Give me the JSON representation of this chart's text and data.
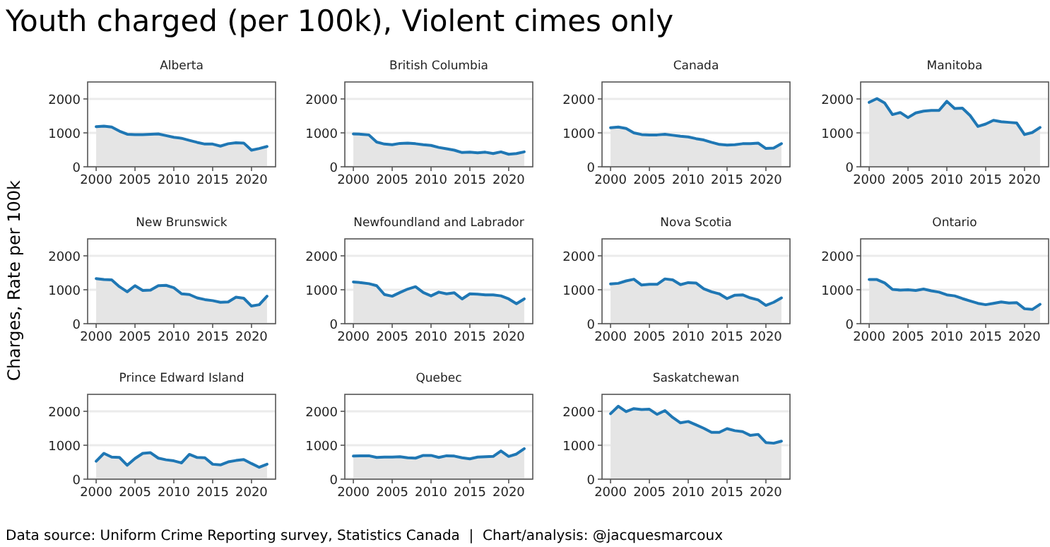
{
  "chart_data": [
    {
      "type": "other",
      "title": "Youth charged (per 100k), Violent cimes only",
      "ylabel": "Charges, Rate per 100k",
      "annotations": [
        "Data source: Uniform Crime Reporting survey, Statistics Canada  |  Chart/analysis: @jacquesmarcoux"
      ]
    },
    {
      "type": "area",
      "title": "Alberta",
      "x": [
        2000,
        2001,
        2002,
        2003,
        2004,
        2005,
        2006,
        2007,
        2008,
        2009,
        2010,
        2011,
        2012,
        2013,
        2014,
        2015,
        2016,
        2017,
        2018,
        2019,
        2020,
        2021,
        2022
      ],
      "values": [
        1180,
        1200,
        1170,
        1050,
        960,
        950,
        950,
        960,
        970,
        920,
        870,
        840,
        780,
        720,
        670,
        670,
        610,
        680,
        710,
        700,
        490,
        540,
        600
      ],
      "color": "#1f77b4",
      "xlim": [
        1998.9,
        2023.1
      ],
      "xticks": [
        2000,
        2005,
        2010,
        2015,
        2020
      ],
      "ylim": [
        0,
        2500
      ],
      "yticks": [
        0,
        1000,
        2000
      ],
      "grid": "y"
    },
    {
      "type": "area",
      "title": "British Columbia",
      "x": [
        2000,
        2001,
        2002,
        2003,
        2004,
        2005,
        2006,
        2007,
        2008,
        2009,
        2010,
        2011,
        2012,
        2013,
        2014,
        2015,
        2016,
        2017,
        2018,
        2019,
        2020,
        2021,
        2022
      ],
      "values": [
        970,
        960,
        940,
        730,
        670,
        650,
        690,
        700,
        680,
        650,
        630,
        570,
        530,
        490,
        420,
        430,
        410,
        430,
        390,
        440,
        370,
        390,
        440
      ],
      "color": "#1f77b4",
      "xlim": [
        1998.9,
        2023.1
      ],
      "xticks": [
        2000,
        2005,
        2010,
        2015,
        2020
      ],
      "ylim": [
        0,
        2500
      ],
      "yticks": [
        0,
        1000,
        2000
      ],
      "grid": "y"
    },
    {
      "type": "area",
      "title": "Canada",
      "x": [
        2000,
        2001,
        2002,
        2003,
        2004,
        2005,
        2006,
        2007,
        2008,
        2009,
        2010,
        2011,
        2012,
        2013,
        2014,
        2015,
        2016,
        2017,
        2018,
        2019,
        2020,
        2021,
        2022
      ],
      "values": [
        1150,
        1170,
        1130,
        1000,
        950,
        940,
        940,
        960,
        930,
        900,
        880,
        830,
        790,
        720,
        660,
        640,
        650,
        680,
        680,
        700,
        540,
        550,
        680
      ],
      "color": "#1f77b4",
      "xlim": [
        1998.9,
        2023.1
      ],
      "xticks": [
        2000,
        2005,
        2010,
        2015,
        2020
      ],
      "ylim": [
        0,
        2500
      ],
      "yticks": [
        0,
        1000,
        2000
      ],
      "grid": "y"
    },
    {
      "type": "area",
      "title": "Manitoba",
      "x": [
        2000,
        2001,
        2002,
        2003,
        2004,
        2005,
        2006,
        2007,
        2008,
        2009,
        2010,
        2011,
        2012,
        2013,
        2014,
        2015,
        2016,
        2017,
        2018,
        2019,
        2020,
        2021,
        2022
      ],
      "values": [
        1900,
        2010,
        1880,
        1540,
        1600,
        1450,
        1590,
        1640,
        1660,
        1660,
        1930,
        1720,
        1730,
        1510,
        1190,
        1260,
        1370,
        1330,
        1310,
        1290,
        950,
        1010,
        1160
      ],
      "color": "#1f77b4",
      "xlim": [
        1998.9,
        2023.1
      ],
      "xticks": [
        2000,
        2005,
        2010,
        2015,
        2020
      ],
      "ylim": [
        0,
        2500
      ],
      "yticks": [
        0,
        1000,
        2000
      ],
      "grid": "y"
    },
    {
      "type": "area",
      "title": "New Brunswick",
      "x": [
        2000,
        2001,
        2002,
        2003,
        2004,
        2005,
        2006,
        2007,
        2008,
        2009,
        2010,
        2011,
        2012,
        2013,
        2014,
        2015,
        2016,
        2017,
        2018,
        2019,
        2020,
        2021,
        2022
      ],
      "values": [
        1330,
        1300,
        1290,
        1090,
        940,
        1120,
        980,
        990,
        1120,
        1130,
        1060,
        880,
        860,
        760,
        710,
        680,
        630,
        640,
        780,
        750,
        520,
        560,
        810
      ],
      "color": "#1f77b4",
      "xlim": [
        1998.9,
        2023.1
      ],
      "xticks": [
        2000,
        2005,
        2010,
        2015,
        2020
      ],
      "ylim": [
        0,
        2500
      ],
      "yticks": [
        0,
        1000,
        2000
      ],
      "grid": "y"
    },
    {
      "type": "area",
      "title": "Newfoundland and Labrador",
      "x": [
        2000,
        2001,
        2002,
        2003,
        2004,
        2005,
        2006,
        2007,
        2008,
        2009,
        2010,
        2011,
        2012,
        2013,
        2014,
        2015,
        2016,
        2017,
        2018,
        2019,
        2020,
        2021,
        2022
      ],
      "values": [
        1230,
        1210,
        1180,
        1120,
        860,
        810,
        920,
        1020,
        1090,
        920,
        820,
        930,
        880,
        910,
        730,
        880,
        870,
        850,
        850,
        820,
        730,
        590,
        730
      ],
      "color": "#1f77b4",
      "xlim": [
        1998.9,
        2023.1
      ],
      "xticks": [
        2000,
        2005,
        2010,
        2015,
        2020
      ],
      "ylim": [
        0,
        2500
      ],
      "yticks": [
        0,
        1000,
        2000
      ],
      "grid": "y"
    },
    {
      "type": "area",
      "title": "Nova Scotia",
      "x": [
        2000,
        2001,
        2002,
        2003,
        2004,
        2005,
        2006,
        2007,
        2008,
        2009,
        2010,
        2011,
        2012,
        2013,
        2014,
        2015,
        2016,
        2017,
        2018,
        2019,
        2020,
        2021,
        2022
      ],
      "values": [
        1170,
        1190,
        1260,
        1310,
        1140,
        1160,
        1160,
        1320,
        1290,
        1150,
        1210,
        1200,
        1030,
        940,
        880,
        740,
        840,
        850,
        760,
        700,
        540,
        630,
        760
      ],
      "color": "#1f77b4",
      "xlim": [
        1998.9,
        2023.1
      ],
      "xticks": [
        2000,
        2005,
        2010,
        2015,
        2020
      ],
      "ylim": [
        0,
        2500
      ],
      "yticks": [
        0,
        1000,
        2000
      ],
      "grid": "y"
    },
    {
      "type": "area",
      "title": "Ontario",
      "x": [
        2000,
        2001,
        2002,
        2003,
        2004,
        2005,
        2006,
        2007,
        2008,
        2009,
        2010,
        2011,
        2012,
        2013,
        2014,
        2015,
        2016,
        2017,
        2018,
        2019,
        2020,
        2021,
        2022
      ],
      "values": [
        1300,
        1300,
        1200,
        1010,
        990,
        1000,
        980,
        1020,
        970,
        930,
        850,
        820,
        740,
        670,
        600,
        560,
        600,
        640,
        610,
        620,
        440,
        420,
        570
      ],
      "color": "#1f77b4",
      "xlim": [
        1998.9,
        2023.1
      ],
      "xticks": [
        2000,
        2005,
        2010,
        2015,
        2020
      ],
      "ylim": [
        0,
        2500
      ],
      "yticks": [
        0,
        1000,
        2000
      ],
      "grid": "y"
    },
    {
      "type": "area",
      "title": "Prince Edward Island",
      "x": [
        2000,
        2001,
        2002,
        2003,
        2004,
        2005,
        2006,
        2007,
        2008,
        2009,
        2010,
        2011,
        2012,
        2013,
        2014,
        2015,
        2016,
        2017,
        2018,
        2019,
        2020,
        2021,
        2022
      ],
      "values": [
        530,
        760,
        650,
        640,
        410,
        610,
        760,
        780,
        620,
        570,
        540,
        480,
        730,
        640,
        630,
        440,
        420,
        510,
        550,
        580,
        460,
        350,
        440
      ],
      "color": "#1f77b4",
      "xlim": [
        1998.9,
        2023.1
      ],
      "xticks": [
        2000,
        2005,
        2010,
        2015,
        2020
      ],
      "ylim": [
        0,
        2500
      ],
      "yticks": [
        0,
        1000,
        2000
      ],
      "grid": "y"
    },
    {
      "type": "area",
      "title": "Quebec",
      "x": [
        2000,
        2001,
        2002,
        2003,
        2004,
        2005,
        2006,
        2007,
        2008,
        2009,
        2010,
        2011,
        2012,
        2013,
        2014,
        2015,
        2016,
        2017,
        2018,
        2019,
        2020,
        2021,
        2022
      ],
      "values": [
        680,
        690,
        690,
        640,
        650,
        650,
        660,
        630,
        620,
        700,
        700,
        640,
        690,
        680,
        630,
        600,
        650,
        660,
        670,
        830,
        670,
        740,
        900
      ],
      "color": "#1f77b4",
      "xlim": [
        1998.9,
        2023.1
      ],
      "xticks": [
        2000,
        2005,
        2010,
        2015,
        2020
      ],
      "ylim": [
        0,
        2500
      ],
      "yticks": [
        0,
        1000,
        2000
      ],
      "grid": "y"
    },
    {
      "type": "area",
      "title": "Saskatchewan",
      "x": [
        2000,
        2001,
        2002,
        2003,
        2004,
        2005,
        2006,
        2007,
        2008,
        2009,
        2010,
        2011,
        2012,
        2013,
        2014,
        2015,
        2016,
        2017,
        2018,
        2019,
        2020,
        2021,
        2022
      ],
      "values": [
        1930,
        2150,
        1990,
        2080,
        2050,
        2060,
        1910,
        2020,
        1820,
        1660,
        1700,
        1600,
        1500,
        1380,
        1380,
        1490,
        1430,
        1400,
        1290,
        1320,
        1080,
        1060,
        1120
      ],
      "color": "#1f77b4",
      "xlim": [
        1998.9,
        2023.1
      ],
      "xticks": [
        2000,
        2005,
        2010,
        2015,
        2020
      ],
      "ylim": [
        0,
        2500
      ],
      "yticks": [
        0,
        1000,
        2000
      ],
      "grid": "y"
    }
  ]
}
